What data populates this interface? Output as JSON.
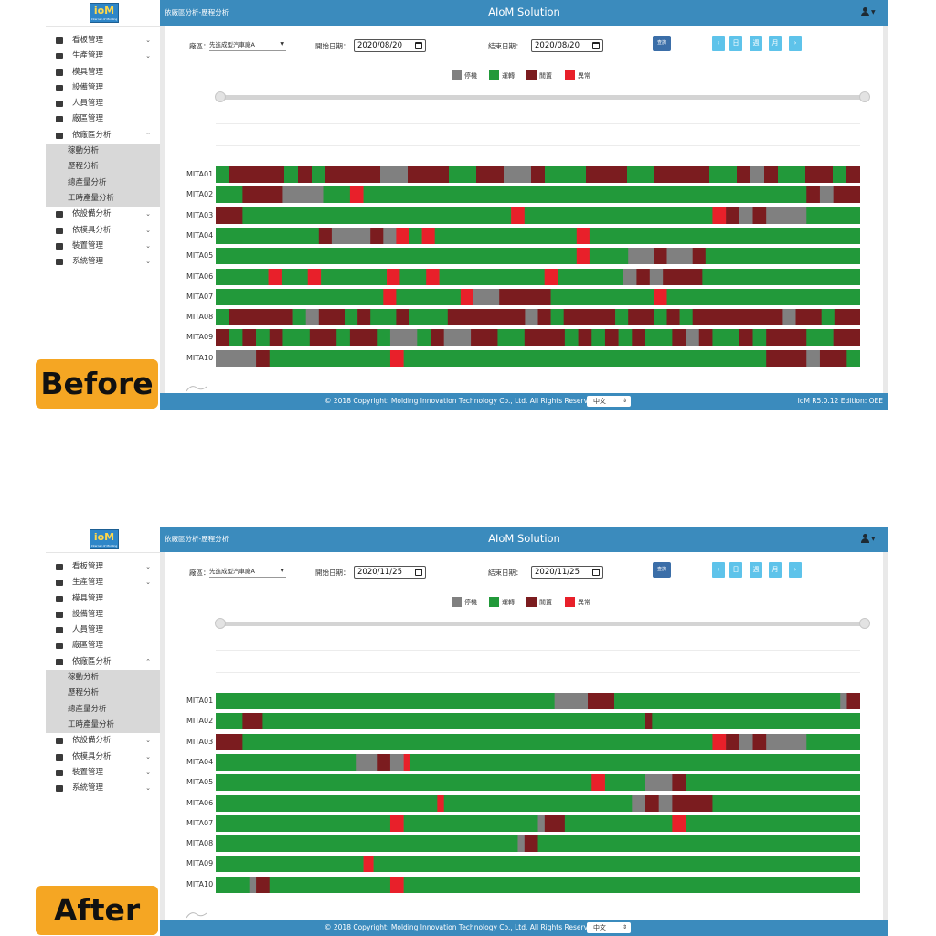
{
  "app": {
    "title": "AIoM Solution",
    "logo_text": "ioM",
    "logo_subtext": "Internet of Molding",
    "breadcrumb": "依廠區分析-歷程分析",
    "footer_copyright": "© 2018 Copyright: Molding Innovation Technology Co., Ltd. All Rights Reserved",
    "language": "中文",
    "version": "IoM R5.0.12 Edition: OEE"
  },
  "sidebar": {
    "items": [
      {
        "label": "看板管理",
        "icon": "monitor-icon",
        "expandable": true
      },
      {
        "label": "生產管理",
        "icon": "factory-icon",
        "expandable": true
      },
      {
        "label": "模具管理",
        "icon": "mold-icon",
        "expandable": false
      },
      {
        "label": "設備管理",
        "icon": "equipment-icon",
        "expandable": false
      },
      {
        "label": "人員管理",
        "icon": "user-icon",
        "expandable": false
      },
      {
        "label": "廠區管理",
        "icon": "plant-icon",
        "expandable": false
      },
      {
        "label": "依廠區分析",
        "icon": "chart-icon",
        "expandable": true,
        "expanded": true
      }
    ],
    "subitems": [
      "稼動分析",
      "歷程分析",
      "總產量分析",
      "工時產量分析"
    ],
    "items_after": [
      {
        "label": "依設備分析",
        "icon": "machine-icon",
        "expandable": true
      },
      {
        "label": "依模具分析",
        "icon": "mold-analysis-icon",
        "expandable": true
      },
      {
        "label": "裝置管理",
        "icon": "device-icon",
        "expandable": true
      },
      {
        "label": "系統管理",
        "icon": "gear-icon",
        "expandable": true
      }
    ]
  },
  "filters": {
    "area_label": "廠區：",
    "area_value": "先進成型汽車廠A",
    "start_label": "開始日期：",
    "end_label": "結束日期：",
    "query_button": "查詢",
    "nav_prev": "‹",
    "nav_day": "日",
    "nav_week": "週",
    "nav_month": "月",
    "nav_next": "›"
  },
  "legend": [
    {
      "label": "停機",
      "color": "#808080"
    },
    {
      "label": "運轉",
      "color": "#22993a"
    },
    {
      "label": "閒置",
      "color": "#7b1c1f"
    },
    {
      "label": "異常",
      "color": "#e8202a"
    }
  ],
  "labels": {
    "before": "Before",
    "after": "After"
  },
  "screens": [
    {
      "start_date": "2020/08/20",
      "end_date": "2020/08/20",
      "machines": [
        {
          "name": "MITA01",
          "segments": [
            [
              "R",
              2
            ],
            [
              "I",
              8
            ],
            [
              "R",
              2
            ],
            [
              "I",
              2
            ],
            [
              "R",
              2
            ],
            [
              "I",
              8
            ],
            [
              "S",
              4
            ],
            [
              "I",
              6
            ],
            [
              "R",
              4
            ],
            [
              "I",
              4
            ],
            [
              "S",
              4
            ],
            [
              "I",
              2
            ],
            [
              "R",
              6
            ],
            [
              "I",
              6
            ],
            [
              "R",
              4
            ],
            [
              "I",
              8
            ],
            [
              "R",
              4
            ],
            [
              "I",
              2
            ],
            [
              "S",
              2
            ],
            [
              "I",
              2
            ],
            [
              "R",
              4
            ],
            [
              "I",
              4
            ],
            [
              "R",
              2
            ],
            [
              "I",
              2
            ]
          ]
        },
        {
          "name": "MITA02",
          "segments": [
            [
              "R",
              4
            ],
            [
              "I",
              6
            ],
            [
              "S",
              6
            ],
            [
              "R",
              4
            ],
            [
              "E",
              2
            ],
            [
              "R",
              66
            ],
            [
              "I",
              2
            ],
            [
              "S",
              2
            ],
            [
              "I",
              4
            ]
          ]
        },
        {
          "name": "MITA03",
          "segments": [
            [
              "I",
              4
            ],
            [
              "R",
              40
            ],
            [
              "E",
              2
            ],
            [
              "R",
              28
            ],
            [
              "E",
              2
            ],
            [
              "I",
              2
            ],
            [
              "S",
              2
            ],
            [
              "I",
              2
            ],
            [
              "S",
              6
            ],
            [
              "R",
              8
            ]
          ]
        },
        {
          "name": "MITA04",
          "segments": [
            [
              "R",
              16
            ],
            [
              "I",
              2
            ],
            [
              "S",
              6
            ],
            [
              "I",
              2
            ],
            [
              "S",
              2
            ],
            [
              "E",
              2
            ],
            [
              "R",
              2
            ],
            [
              "E",
              2
            ],
            [
              "R",
              22
            ],
            [
              "E",
              2
            ],
            [
              "R",
              42
            ]
          ]
        },
        {
          "name": "MITA05",
          "segments": [
            [
              "R",
              56
            ],
            [
              "E",
              2
            ],
            [
              "R",
              6
            ],
            [
              "S",
              4
            ],
            [
              "I",
              2
            ],
            [
              "S",
              4
            ],
            [
              "I",
              2
            ],
            [
              "R",
              24
            ]
          ]
        },
        {
          "name": "MITA06",
          "segments": [
            [
              "R",
              8
            ],
            [
              "E",
              2
            ],
            [
              "R",
              4
            ],
            [
              "E",
              2
            ],
            [
              "R",
              10
            ],
            [
              "E",
              2
            ],
            [
              "R",
              4
            ],
            [
              "E",
              2
            ],
            [
              "R",
              16
            ],
            [
              "E",
              2
            ],
            [
              "R",
              10
            ],
            [
              "S",
              2
            ],
            [
              "I",
              2
            ],
            [
              "S",
              2
            ],
            [
              "I",
              6
            ],
            [
              "R",
              24
            ]
          ]
        },
        {
          "name": "MITA07",
          "segments": [
            [
              "R",
              26
            ],
            [
              "E",
              2
            ],
            [
              "R",
              10
            ],
            [
              "E",
              2
            ],
            [
              "S",
              4
            ],
            [
              "I",
              8
            ],
            [
              "R",
              16
            ],
            [
              "E",
              2
            ],
            [
              "R",
              30
            ]
          ]
        },
        {
          "name": "MITA08",
          "segments": [
            [
              "R",
              2
            ],
            [
              "I",
              10
            ],
            [
              "R",
              2
            ],
            [
              "S",
              2
            ],
            [
              "I",
              4
            ],
            [
              "R",
              2
            ],
            [
              "I",
              2
            ],
            [
              "R",
              4
            ],
            [
              "I",
              2
            ],
            [
              "R",
              6
            ],
            [
              "I",
              12
            ],
            [
              "S",
              2
            ],
            [
              "I",
              2
            ],
            [
              "R",
              2
            ],
            [
              "I",
              8
            ],
            [
              "R",
              2
            ],
            [
              "I",
              4
            ],
            [
              "R",
              2
            ],
            [
              "I",
              2
            ],
            [
              "R",
              2
            ],
            [
              "I",
              14
            ],
            [
              "S",
              2
            ],
            [
              "I",
              4
            ],
            [
              "R",
              2
            ],
            [
              "I",
              4
            ]
          ]
        },
        {
          "name": "MITA09",
          "segments": [
            [
              "I",
              2
            ],
            [
              "R",
              2
            ],
            [
              "I",
              2
            ],
            [
              "R",
              2
            ],
            [
              "I",
              2
            ],
            [
              "R",
              4
            ],
            [
              "I",
              4
            ],
            [
              "R",
              2
            ],
            [
              "I",
              4
            ],
            [
              "R",
              2
            ],
            [
              "S",
              4
            ],
            [
              "R",
              2
            ],
            [
              "I",
              2
            ],
            [
              "S",
              4
            ],
            [
              "I",
              4
            ],
            [
              "R",
              4
            ],
            [
              "I",
              6
            ],
            [
              "R",
              2
            ],
            [
              "I",
              2
            ],
            [
              "R",
              2
            ],
            [
              "I",
              2
            ],
            [
              "R",
              2
            ],
            [
              "I",
              2
            ],
            [
              "R",
              4
            ],
            [
              "I",
              2
            ],
            [
              "S",
              2
            ],
            [
              "I",
              2
            ],
            [
              "R",
              4
            ],
            [
              "I",
              2
            ],
            [
              "R",
              2
            ],
            [
              "I",
              6
            ],
            [
              "R",
              4
            ],
            [
              "I",
              4
            ]
          ]
        },
        {
          "name": "MITA10",
          "segments": [
            [
              "S",
              6
            ],
            [
              "I",
              2
            ],
            [
              "R",
              18
            ],
            [
              "E",
              2
            ],
            [
              "R",
              54
            ],
            [
              "I",
              6
            ],
            [
              "S",
              2
            ],
            [
              "I",
              4
            ],
            [
              "R",
              2
            ]
          ]
        }
      ]
    },
    {
      "start_date": "2020/11/25",
      "end_date": "2020/11/25",
      "machines": [
        {
          "name": "MITA01",
          "segments": [
            [
              "R",
              51
            ],
            [
              "S",
              3
            ],
            [
              "S",
              2
            ],
            [
              "I",
              4
            ],
            [
              "R",
              34
            ],
            [
              "S",
              1
            ],
            [
              "I",
              2
            ]
          ]
        },
        {
          "name": "MITA02",
          "segments": [
            [
              "R",
              4
            ],
            [
              "I",
              3
            ],
            [
              "R",
              57
            ],
            [
              "I",
              1
            ],
            [
              "R",
              31
            ]
          ]
        },
        {
          "name": "MITA03",
          "segments": [
            [
              "I",
              4
            ],
            [
              "R",
              70
            ],
            [
              "E",
              2
            ],
            [
              "I",
              2
            ],
            [
              "S",
              2
            ],
            [
              "I",
              2
            ],
            [
              "S",
              6
            ],
            [
              "R",
              8
            ]
          ]
        },
        {
          "name": "MITA04",
          "segments": [
            [
              "R",
              21
            ],
            [
              "S",
              3
            ],
            [
              "I",
              2
            ],
            [
              "S",
              2
            ],
            [
              "E",
              1
            ],
            [
              "R",
              67
            ]
          ]
        },
        {
          "name": "MITA05",
          "segments": [
            [
              "R",
              56
            ],
            [
              "E",
              2
            ],
            [
              "R",
              6
            ],
            [
              "S",
              4
            ],
            [
              "I",
              2
            ],
            [
              "R",
              26
            ]
          ]
        },
        {
          "name": "MITA06",
          "segments": [
            [
              "R",
              33
            ],
            [
              "E",
              1
            ],
            [
              "R",
              28
            ],
            [
              "S",
              2
            ],
            [
              "I",
              2
            ],
            [
              "S",
              2
            ],
            [
              "I",
              6
            ],
            [
              "R",
              22
            ]
          ]
        },
        {
          "name": "MITA07",
          "segments": [
            [
              "R",
              26
            ],
            [
              "E",
              2
            ],
            [
              "R",
              20
            ],
            [
              "S",
              1
            ],
            [
              "I",
              3
            ],
            [
              "R",
              16
            ],
            [
              "E",
              2
            ],
            [
              "R",
              26
            ]
          ]
        },
        {
          "name": "MITA08",
          "segments": [
            [
              "R",
              45
            ],
            [
              "S",
              1
            ],
            [
              "I",
              2
            ],
            [
              "R",
              48
            ]
          ]
        },
        {
          "name": "MITA09",
          "segments": [
            [
              "R",
              22
            ],
            [
              "E",
              1.5
            ],
            [
              "R",
              72.5
            ]
          ]
        },
        {
          "name": "MITA10",
          "segments": [
            [
              "R",
              5
            ],
            [
              "S",
              1
            ],
            [
              "I",
              2
            ],
            [
              "R",
              18
            ],
            [
              "E",
              2
            ],
            [
              "R",
              68
            ]
          ]
        }
      ]
    }
  ]
}
